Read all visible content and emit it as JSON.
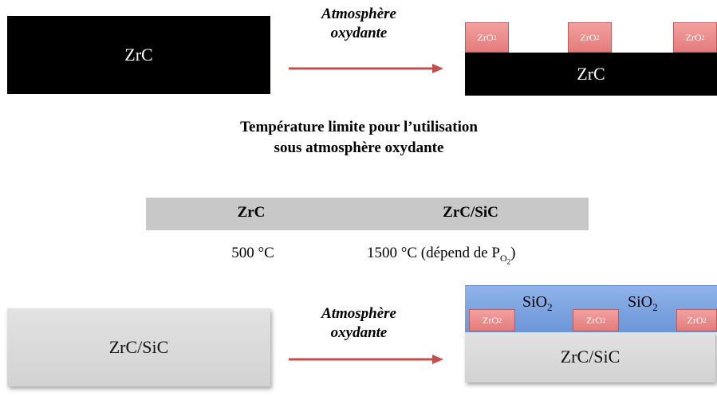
{
  "top": {
    "block_label": "ZrC",
    "arrow_label_line1": "Atmosphère",
    "arrow_label_line2": "oxydante",
    "result_label": "ZrC",
    "oxide_base": "ZrO",
    "oxide_sub": "2"
  },
  "middle": {
    "title_line1": "Température limite pour l’utilisation",
    "title_line2": "sous atmosphère oxydante",
    "table": {
      "headers": [
        "ZrC",
        "ZrC/SiC"
      ],
      "values": [
        "500 °C",
        "1500 °C (dépend de P"
      ],
      "pressure_sub": "O",
      "pressure_subsub": "2",
      "close_paren": ")"
    }
  },
  "bottom": {
    "block_label": "ZrC/SiC",
    "arrow_label_line1": "Atmosphère",
    "arrow_label_line2": "oxydante",
    "result_label": "ZrC/SiC",
    "silica_base": "SiO",
    "silica_sub": "2",
    "oxide_base": "ZrO",
    "oxide_sub": "2"
  },
  "colors": {
    "arrow": "#c0504d",
    "oxide": "#e57c7c",
    "silica": "#6c96d8",
    "table_header": "#c8c8c8"
  }
}
